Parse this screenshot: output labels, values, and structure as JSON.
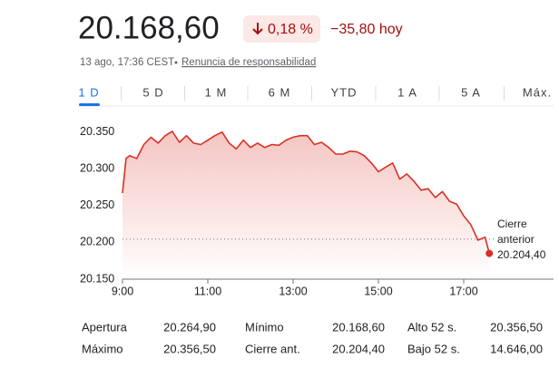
{
  "header": {
    "price": "20.168,60",
    "change_percent": "0,18 %",
    "change_absolute": "−35,80 hoy",
    "timestamp": "13 ago, 17:36 CEST",
    "disclaimer": "Renuncia de responsabilidad"
  },
  "tabs": [
    "1 D",
    "5 D",
    "1 M",
    "6 M",
    "YTD",
    "1 A",
    "5 A",
    "Máx."
  ],
  "chart_data": {
    "type": "line",
    "x": [
      540,
      545,
      550,
      560,
      570,
      580,
      590,
      600,
      610,
      620,
      630,
      640,
      650,
      660,
      670,
      680,
      690,
      700,
      710,
      720,
      730,
      740,
      750,
      760,
      770,
      780,
      790,
      800,
      810,
      820,
      830,
      840,
      850,
      860,
      870,
      880,
      890,
      900,
      910,
      920,
      930,
      940,
      950,
      960,
      970,
      980,
      990,
      1000,
      1010,
      1020,
      1030,
      1040,
      1050,
      1056
    ],
    "series": [
      {
        "color": "#d93025",
        "values": [
          20267,
          20314,
          20318,
          20314,
          20333,
          20343,
          20335,
          20345,
          20351,
          20336,
          20345,
          20335,
          20333,
          20339,
          20345,
          20350,
          20335,
          20327,
          20339,
          20329,
          20335,
          20329,
          20333,
          20332,
          20339,
          20343,
          20345,
          20345,
          20333,
          20336,
          20329,
          20320,
          20320,
          20324,
          20323,
          20318,
          20308,
          20296,
          20302,
          20308,
          20286,
          20293,
          20283,
          20271,
          20273,
          20261,
          20269,
          20256,
          20252,
          20236,
          20224,
          20203,
          20207,
          20185
        ]
      }
    ],
    "xlim": [
      540,
      1140
    ],
    "xticks": [
      {
        "value": 540,
        "label": "9:00"
      },
      {
        "value": 660,
        "label": "11:00"
      },
      {
        "value": 780,
        "label": "13:00"
      },
      {
        "value": 900,
        "label": "15:00"
      },
      {
        "value": 1020,
        "label": "17:00"
      }
    ],
    "ylim": [
      20150,
      20357
    ],
    "yticks": [
      {
        "value": 20150,
        "label": "20.150"
      },
      {
        "value": 20200,
        "label": "20.200"
      },
      {
        "value": 20250,
        "label": "20.250"
      },
      {
        "value": 20300,
        "label": "20.300"
      },
      {
        "value": 20350,
        "label": "20.350"
      }
    ],
    "reference_line": {
      "label": "Cierre anterior",
      "value": 20204.4,
      "value_label": "20.204,40"
    }
  },
  "stats": [
    [
      "Apertura",
      "20.264,90",
      "Mínimo",
      "20.168,60",
      "Alto 52 s.",
      "20.356,50"
    ],
    [
      "Máximo",
      "20.356,50",
      "Cierre ant.",
      "20.204,40",
      "Bajo 52 s.",
      "14.646,00"
    ]
  ]
}
